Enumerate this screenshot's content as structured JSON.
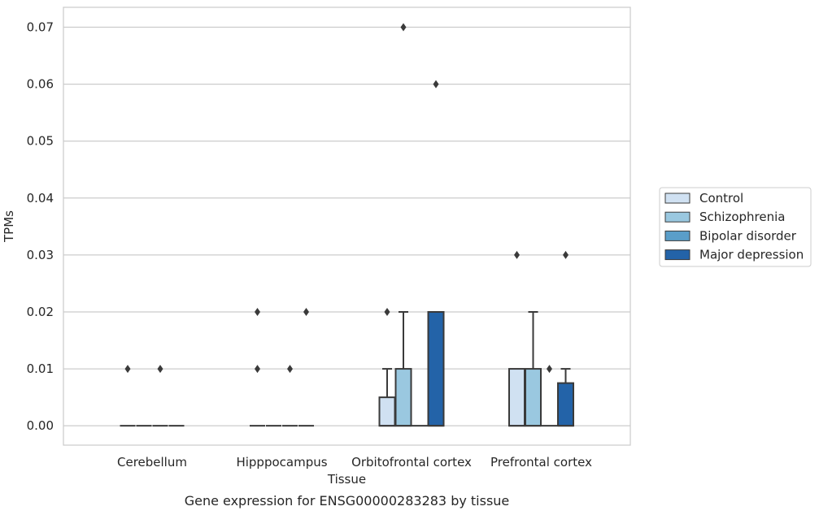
{
  "chart_data": {
    "type": "box",
    "xlabel": "Tissue",
    "ylabel": "TPMs",
    "caption": "Gene expression for ENSG00000283283 by tissue",
    "ylim": [
      -0.0034,
      0.0735
    ],
    "yticks": [
      0.0,
      0.01,
      0.02,
      0.03,
      0.04,
      0.05,
      0.06,
      0.07
    ],
    "ytick_labels": [
      "0.00",
      "0.01",
      "0.02",
      "0.03",
      "0.04",
      "0.05",
      "0.06",
      "0.07"
    ],
    "grid": "horizontal",
    "legend_position": "right",
    "categories": [
      "Cerebellum",
      "Hipppocampus",
      "Orbitofrontal cortex",
      "Prefrontal cortex"
    ],
    "series": [
      {
        "name": "Control",
        "color": "#d0e1f2",
        "boxes": [
          {
            "q1": 0,
            "median": 0,
            "q3": 0,
            "whisker_low": 0,
            "whisker_high": 0,
            "outliers": [
              0.01
            ]
          },
          {
            "q1": 0,
            "median": 0,
            "q3": 0,
            "whisker_low": 0,
            "whisker_high": 0,
            "outliers": [
              0.01,
              0.02
            ]
          },
          {
            "q1": 0,
            "median": 0,
            "q3": 0.005,
            "whisker_low": 0,
            "whisker_high": 0.01,
            "outliers": [
              0.02
            ]
          },
          {
            "q1": 0,
            "median": 0,
            "q3": 0.01,
            "whisker_low": 0,
            "whisker_high": 0.01,
            "outliers": [
              0.03
            ]
          }
        ]
      },
      {
        "name": "Schizophrenia",
        "color": "#9ac8e0",
        "boxes": [
          {
            "q1": 0,
            "median": 0,
            "q3": 0,
            "whisker_low": 0,
            "whisker_high": 0,
            "outliers": []
          },
          {
            "q1": 0,
            "median": 0,
            "q3": 0,
            "whisker_low": 0,
            "whisker_high": 0,
            "outliers": []
          },
          {
            "q1": 0,
            "median": 0,
            "q3": 0.01,
            "whisker_low": 0,
            "whisker_high": 0.02,
            "outliers": [
              0.07
            ]
          },
          {
            "q1": 0,
            "median": 0,
            "q3": 0.01,
            "whisker_low": 0,
            "whisker_high": 0.02,
            "outliers": []
          }
        ]
      },
      {
        "name": "Bipolar disorder",
        "color": "#5a9ec9",
        "boxes": [
          {
            "q1": 0,
            "median": 0,
            "q3": 0,
            "whisker_low": 0,
            "whisker_high": 0,
            "outliers": [
              0.01
            ]
          },
          {
            "q1": 0,
            "median": 0,
            "q3": 0,
            "whisker_low": 0,
            "whisker_high": 0,
            "outliers": [
              0.01
            ]
          },
          {
            "q1": 0,
            "median": 0,
            "q3": 0,
            "whisker_low": 0,
            "whisker_high": 0,
            "outliers": []
          },
          {
            "q1": 0,
            "median": 0,
            "q3": 0,
            "whisker_low": 0,
            "whisker_high": 0,
            "outliers": [
              0.01
            ]
          }
        ]
      },
      {
        "name": "Major depression",
        "color": "#2363a8",
        "boxes": [
          {
            "q1": 0,
            "median": 0,
            "q3": 0,
            "whisker_low": 0,
            "whisker_high": 0,
            "outliers": []
          },
          {
            "q1": 0,
            "median": 0,
            "q3": 0,
            "whisker_low": 0,
            "whisker_high": 0,
            "outliers": [
              0.02
            ]
          },
          {
            "q1": 0,
            "median": 0,
            "q3": 0.02,
            "whisker_low": 0,
            "whisker_high": 0.02,
            "outliers": [
              0.06
            ]
          },
          {
            "q1": 0,
            "median": 0,
            "q3": 0.0075,
            "whisker_low": 0,
            "whisker_high": 0.01,
            "outliers": [
              0.03
            ]
          }
        ]
      }
    ]
  },
  "colors": {
    "grid": "#cccccc",
    "axes_frame": "#cccccc",
    "box_edge": "#3a3a3a",
    "text": "#262626"
  }
}
